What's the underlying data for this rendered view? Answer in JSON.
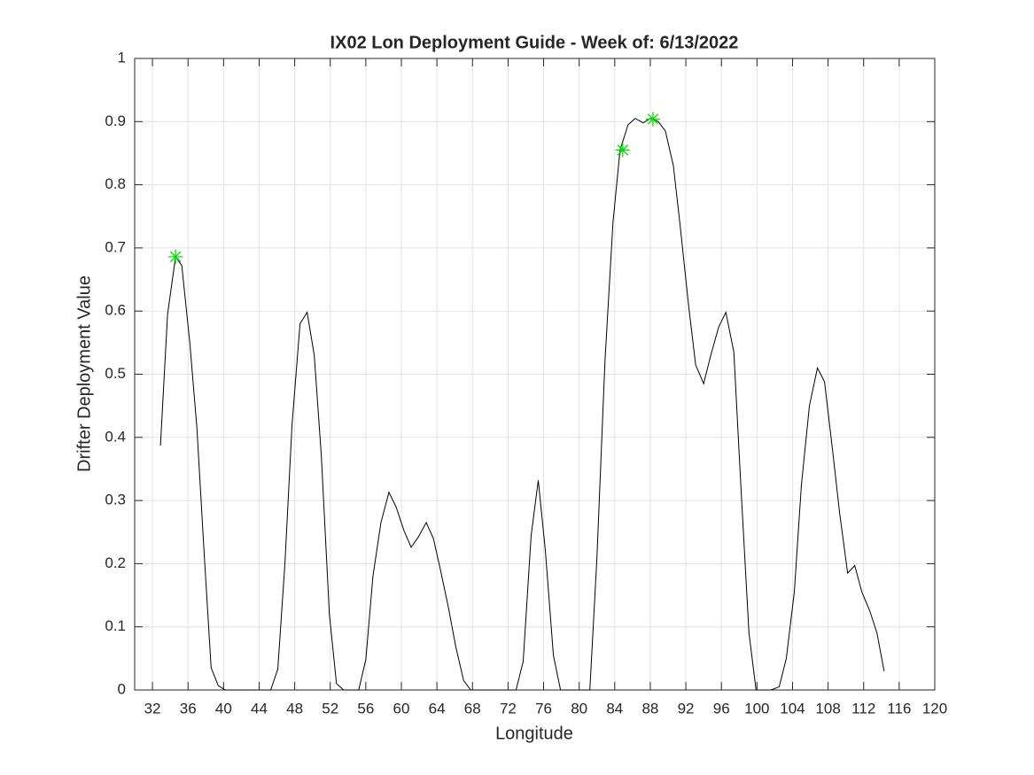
{
  "chart_data": {
    "type": "line",
    "title": "IX02 Lon Deployment Guide - Week of: 6/13/2022",
    "xlabel": "Longitude",
    "ylabel": "Drifter Deployment Value",
    "xlim": [
      30,
      120
    ],
    "ylim": [
      0,
      1
    ],
    "xticks": [
      32,
      36,
      40,
      44,
      48,
      52,
      56,
      60,
      64,
      68,
      72,
      76,
      80,
      84,
      88,
      92,
      96,
      100,
      104,
      108,
      112,
      116,
      120
    ],
    "yticks": [
      0,
      0.1,
      0.2,
      0.3,
      0.4,
      0.5,
      0.6,
      0.7,
      0.8,
      0.9,
      1
    ],
    "grid": true,
    "series": [
      {
        "color": "#000000",
        "x": [
          32.9,
          33.7,
          34.6,
          35.3,
          36.2,
          37.0,
          37.8,
          38.6,
          39.4,
          40.2,
          41.0,
          41.9,
          42.7,
          43.6,
          44.4,
          45.3,
          46.1,
          46.9,
          47.7,
          48.6,
          49.4,
          50.2,
          51.0,
          51.9,
          52.7,
          53.5,
          54.3,
          55.2,
          56.0,
          56.8,
          57.7,
          58.6,
          59.4,
          60.3,
          61.1,
          61.9,
          62.8,
          63.6,
          64.4,
          65.3,
          66.1,
          67.0,
          67.8,
          68.7,
          69.5,
          70.4,
          71.2,
          72.0,
          72.9,
          73.7,
          74.6,
          75.4,
          76.2,
          77.1,
          77.9,
          78.7,
          79.6,
          80.3,
          81.2,
          82.0,
          82.9,
          83.8,
          84.6,
          85.5,
          86.3,
          87.2,
          88.0,
          88.9,
          89.7,
          90.6,
          91.4,
          92.3,
          93.1,
          94.0,
          94.8,
          95.7,
          96.5,
          97.4,
          98.2,
          99.1,
          99.9,
          100.8,
          101.6,
          102.5,
          103.3,
          104.2,
          105.0,
          105.9,
          106.8,
          107.6,
          108.5,
          109.3,
          110.2,
          111.0,
          111.8,
          112.7,
          113.5,
          114.3
        ],
        "values": [
          0.387,
          0.595,
          0.686,
          0.672,
          0.55,
          0.415,
          0.22,
          0.035,
          0.007,
          0,
          0,
          0,
          0,
          0,
          0,
          0,
          0.033,
          0.2,
          0.42,
          0.58,
          0.598,
          0.53,
          0.37,
          0.12,
          0.01,
          0,
          0,
          0,
          0.048,
          0.18,
          0.265,
          0.313,
          0.29,
          0.252,
          0.226,
          0.242,
          0.265,
          0.24,
          0.19,
          0.13,
          0.07,
          0.015,
          0,
          0,
          0,
          0,
          0,
          0,
          0,
          0.045,
          0.245,
          0.332,
          0.22,
          0.055,
          0,
          0,
          0,
          0,
          0,
          0.21,
          0.52,
          0.74,
          0.855,
          0.895,
          0.905,
          0.898,
          0.905,
          0.9,
          0.885,
          0.83,
          0.73,
          0.61,
          0.515,
          0.485,
          0.53,
          0.575,
          0.598,
          0.535,
          0.32,
          0.09,
          0,
          0,
          0,
          0.005,
          0.05,
          0.155,
          0.325,
          0.45,
          0.51,
          0.488,
          0.38,
          0.28,
          0.185,
          0.197,
          0.155,
          0.125,
          0.09,
          0.03
        ]
      },
      {
        "color": "#00e000",
        "marker": "asterisk",
        "x": [
          34.6,
          84.9,
          88.3
        ],
        "values": [
          0.686,
          0.855,
          0.904
        ]
      }
    ]
  }
}
